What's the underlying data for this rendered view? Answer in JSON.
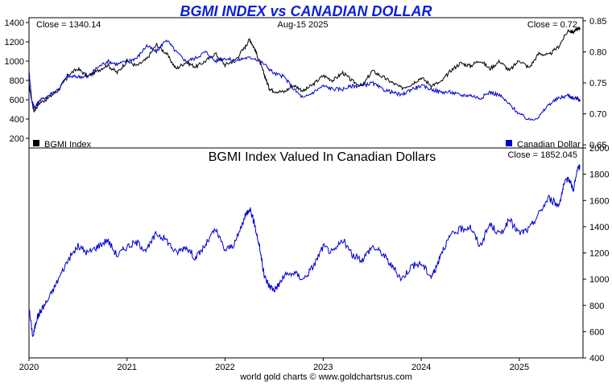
{
  "chart_data": [
    {
      "type": "line",
      "title": "BGMI INDEX vs CANADIAN DOLLAR",
      "date_label": "Aug-15  2025",
      "left_close_label": "Close = 1340.14",
      "right_close_label": "Close = 0.72",
      "legend": [
        {
          "name": "BGMI Index",
          "color": "#000000"
        },
        {
          "name": "Canadian Dollar",
          "color": "#0000cc"
        }
      ],
      "left_axis": {
        "ticks": [
          "1400",
          "1200",
          "1000",
          "800",
          "600",
          "400",
          "200"
        ],
        "ylim": [
          100,
          1450
        ]
      },
      "right_axis": {
        "ticks": [
          "0.85",
          "0.80",
          "0.75",
          "0.70",
          "0.65"
        ],
        "ylim": [
          0.645,
          0.855
        ]
      },
      "series": [
        {
          "name": "BGMI Index",
          "color": "#000000",
          "axis": "left",
          "x": [
            2020.0,
            2020.05,
            2020.1,
            2020.2,
            2020.3,
            2020.4,
            2020.5,
            2020.6,
            2020.7,
            2020.8,
            2020.9,
            2021.0,
            2021.1,
            2021.2,
            2021.3,
            2021.4,
            2021.5,
            2021.6,
            2021.7,
            2021.8,
            2021.9,
            2022.0,
            2022.1,
            2022.2,
            2022.25,
            2022.3,
            2022.35,
            2022.4,
            2022.45,
            2022.5,
            2022.6,
            2022.7,
            2022.8,
            2022.9,
            2023.0,
            2023.1,
            2023.2,
            2023.3,
            2023.4,
            2023.5,
            2023.6,
            2023.7,
            2023.8,
            2023.9,
            2024.0,
            2024.1,
            2024.2,
            2024.3,
            2024.4,
            2024.5,
            2024.6,
            2024.7,
            2024.8,
            2024.9,
            2025.0,
            2025.1,
            2025.2,
            2025.3,
            2025.4,
            2025.5,
            2025.55,
            2025.6,
            2025.62
          ],
          "values": [
            750,
            480,
            560,
            620,
            700,
            860,
            920,
            840,
            900,
            960,
            880,
            1000,
            950,
            1020,
            1170,
            1080,
            920,
            990,
            940,
            1000,
            1080,
            960,
            1010,
            1140,
            1230,
            1130,
            1000,
            860,
            720,
            690,
            680,
            750,
            690,
            760,
            850,
            800,
            880,
            790,
            740,
            900,
            840,
            780,
            720,
            760,
            830,
            750,
            780,
            900,
            980,
            950,
            1010,
            920,
            1000,
            900,
            1010,
            930,
            1080,
            1060,
            1150,
            1320,
            1300,
            1340,
            1340
          ]
        },
        {
          "name": "Canadian Dollar",
          "color": "#0000cc",
          "axis": "right",
          "x": [
            2020.0,
            2020.03,
            2020.06,
            2020.1,
            2020.2,
            2020.3,
            2020.4,
            2020.5,
            2020.6,
            2020.7,
            2020.8,
            2020.9,
            2021.0,
            2021.1,
            2021.2,
            2021.3,
            2021.4,
            2021.5,
            2021.6,
            2021.7,
            2021.8,
            2021.9,
            2022.0,
            2022.1,
            2022.2,
            2022.3,
            2022.4,
            2022.5,
            2022.6,
            2022.7,
            2022.8,
            2022.9,
            2023.0,
            2023.1,
            2023.2,
            2023.3,
            2023.4,
            2023.5,
            2023.6,
            2023.7,
            2023.8,
            2023.9,
            2024.0,
            2024.1,
            2024.2,
            2024.3,
            2024.4,
            2024.5,
            2024.6,
            2024.7,
            2024.8,
            2024.9,
            2025.0,
            2025.1,
            2025.2,
            2025.3,
            2025.4,
            2025.5,
            2025.55,
            2025.6,
            2025.62
          ],
          "values": [
            0.77,
            0.72,
            0.71,
            0.72,
            0.73,
            0.74,
            0.76,
            0.76,
            0.76,
            0.775,
            0.785,
            0.78,
            0.785,
            0.79,
            0.81,
            0.8,
            0.82,
            0.8,
            0.785,
            0.79,
            0.8,
            0.785,
            0.79,
            0.785,
            0.79,
            0.79,
            0.78,
            0.765,
            0.76,
            0.74,
            0.725,
            0.735,
            0.745,
            0.74,
            0.74,
            0.745,
            0.745,
            0.75,
            0.74,
            0.735,
            0.73,
            0.74,
            0.745,
            0.74,
            0.735,
            0.735,
            0.73,
            0.73,
            0.725,
            0.735,
            0.73,
            0.715,
            0.7,
            0.69,
            0.695,
            0.715,
            0.725,
            0.73,
            0.725,
            0.725,
            0.72
          ]
        }
      ]
    },
    {
      "type": "line",
      "title": "BGMI Index Valued In Canadian Dollars",
      "close_label": "Close = 1852.045",
      "y_axis": {
        "ticks": [
          "2000",
          "1800",
          "1600",
          "1400",
          "1200",
          "1000",
          "800",
          "600",
          "400"
        ],
        "ylim": [
          400,
          2000
        ]
      },
      "x_ticks": [
        "2020",
        "2021",
        "2022",
        "2023",
        "2024",
        "2025"
      ],
      "xlim": [
        2020.0,
        2025.65
      ],
      "series": [
        {
          "name": "BGMI Index Valued In Canadian Dollars",
          "color": "#0000cc",
          "x": [
            2020.0,
            2020.04,
            2020.08,
            2020.12,
            2020.2,
            2020.3,
            2020.4,
            2020.5,
            2020.6,
            2020.7,
            2020.8,
            2020.9,
            2021.0,
            2021.1,
            2021.2,
            2021.3,
            2021.4,
            2021.5,
            2021.6,
            2021.7,
            2021.8,
            2021.9,
            2022.0,
            2022.1,
            2022.2,
            2022.25,
            2022.3,
            2022.35,
            2022.4,
            2022.45,
            2022.5,
            2022.55,
            2022.6,
            2022.7,
            2022.8,
            2022.9,
            2023.0,
            2023.1,
            2023.2,
            2023.3,
            2023.4,
            2023.5,
            2023.6,
            2023.7,
            2023.8,
            2023.9,
            2024.0,
            2024.1,
            2024.15,
            2024.2,
            2024.3,
            2024.4,
            2024.5,
            2024.6,
            2024.7,
            2024.8,
            2024.9,
            2025.0,
            2025.1,
            2025.2,
            2025.3,
            2025.4,
            2025.45,
            2025.5,
            2025.55,
            2025.6,
            2025.62
          ],
          "values": [
            780,
            560,
            700,
            760,
            850,
            1000,
            1150,
            1250,
            1200,
            1250,
            1300,
            1180,
            1250,
            1280,
            1220,
            1350,
            1300,
            1200,
            1250,
            1160,
            1260,
            1380,
            1220,
            1270,
            1470,
            1550,
            1420,
            1250,
            1020,
            950,
            920,
            960,
            1020,
            1050,
            1000,
            1100,
            1250,
            1200,
            1300,
            1180,
            1150,
            1250,
            1200,
            1100,
            1000,
            1100,
            1120,
            1020,
            1080,
            1200,
            1330,
            1380,
            1400,
            1250,
            1420,
            1340,
            1450,
            1350,
            1380,
            1500,
            1620,
            1560,
            1700,
            1780,
            1680,
            1850,
            1852
          ]
        }
      ],
      "footer": "world gold charts © www.goldchartsrus.com"
    }
  ]
}
